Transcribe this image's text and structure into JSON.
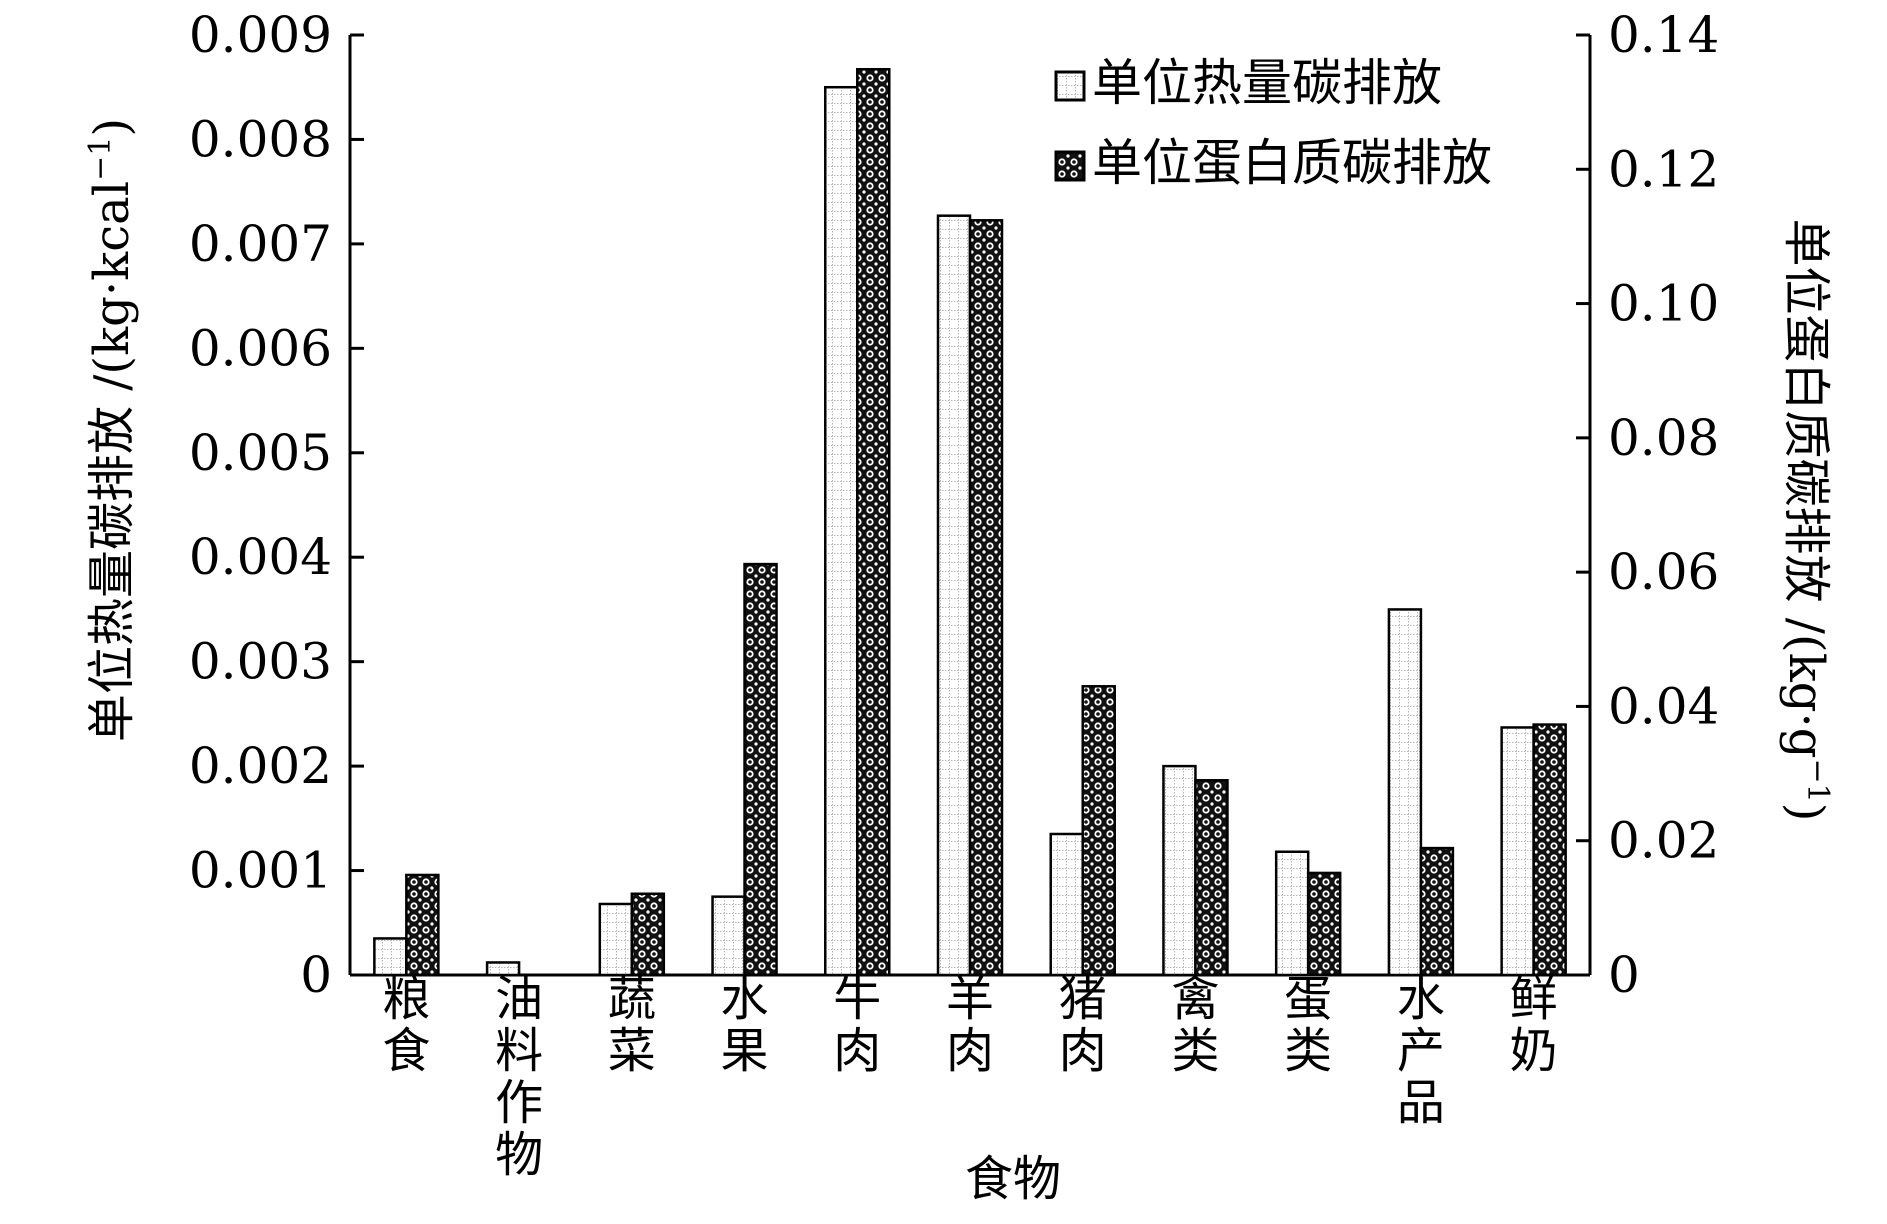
{
  "chart_data": {
    "type": "bar",
    "xlabel": "食物",
    "ylabel_left": {
      "text": "单位热量碳排放 /(kg·kcal",
      "sup": "−1",
      "tail": ")"
    },
    "ylabel_right": {
      "text": "单位蛋白质碳排放 /(kg·g",
      "sup": "−1",
      "tail": ")"
    },
    "categories": [
      "粮食",
      "油料作物",
      "蔬菜",
      "水果",
      "牛肉",
      "羊肉",
      "猪肉",
      "禽类",
      "蛋类",
      "水产品",
      "鲜奶"
    ],
    "series": [
      {
        "name": "单位热量碳排放",
        "axis": "left",
        "pattern": "dotted-light",
        "values": [
          0.00035,
          0.00012,
          0.00068,
          0.00075,
          0.0085,
          0.00727,
          0.00135,
          0.002,
          0.00118,
          0.0035,
          0.00237
        ]
      },
      {
        "name": "单位蛋白质碳排放",
        "axis": "right",
        "pattern": "checker-dark",
        "values": [
          0.0149,
          0,
          0.0121,
          0.0612,
          0.1349,
          0.1124,
          0.043,
          0.029,
          0.0152,
          0.0189,
          0.0373
        ]
      }
    ],
    "ylim_left": [
      0,
      0.009
    ],
    "ylim_right": [
      0,
      0.14
    ],
    "yticks_left": [
      "0",
      "0.001",
      "0.002",
      "0.003",
      "0.004",
      "0.005",
      "0.006",
      "0.007",
      "0.008",
      "0.009"
    ],
    "yticks_right": [
      "0",
      "0.02",
      "0.04",
      "0.06",
      "0.08",
      "0.10",
      "0.12",
      "0.14"
    ],
    "legend_position": "top-right",
    "grid": false
  }
}
